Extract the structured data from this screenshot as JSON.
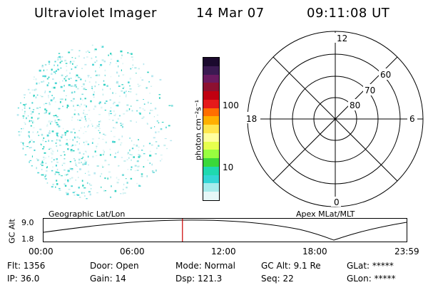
{
  "header": {
    "instrument": "Ultraviolet Imager",
    "date": "14 Mar 07",
    "time": "09:11:08 UT"
  },
  "colorbar": {
    "unit_label": "photon cm⁻²s⁻¹",
    "ticks": [
      {
        "label": "100",
        "value": 100
      },
      {
        "label": "10",
        "value": 10
      }
    ],
    "colors": [
      "#1b0a2e",
      "#3b1a52",
      "#6a1a60",
      "#8d1030",
      "#c00010",
      "#e51a1a",
      "#ff6e00",
      "#ffb000",
      "#ffe64d",
      "#ffff9f",
      "#e6ff4d",
      "#98ff3f",
      "#3ad93a",
      "#1fd9b0",
      "#33d6d6",
      "#a6ecec",
      "#e6f8f8"
    ]
  },
  "polar": {
    "labels": {
      "top": "12",
      "left": "18",
      "right": "6",
      "bottom": "0"
    },
    "lat_labels": [
      "60",
      "70",
      "80"
    ]
  },
  "timeline": {
    "left_label": "Geographic Lat/Lon",
    "right_label": "Apex MLat/MLT",
    "axis_label": "GC Alt",
    "ymax": "9.0",
    "ymin": "1.8",
    "time_ticks": [
      "00:00",
      "06:00",
      "12:00",
      "18:00",
      "23:59"
    ],
    "marker_time": "09:11",
    "line_color": "#000000",
    "marker_color": "#cc0000"
  },
  "footer": {
    "flt": "Flt: 1356",
    "door": "Door: Open",
    "mode": "Mode: Normal",
    "gcalt": "GC Alt: 9.1 Re",
    "glat": "GLat: *****",
    "ip": "IP: 36.0",
    "gain": "Gain: 14",
    "dsp": "Dsp:  121.3",
    "seq": "Seq: 22",
    "glon": "GLon: *****"
  }
}
